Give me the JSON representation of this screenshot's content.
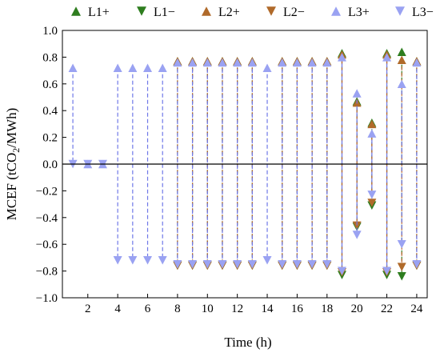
{
  "chart_data": {
    "type": "scatter",
    "title": "",
    "xlabel": "Time (h)",
    "ylabel_prefix": "MCEF (tCO",
    "ylabel_sub": "2",
    "ylabel_suffix": "/MWh)",
    "xlim": [
      0.3,
      24.7
    ],
    "ylim": [
      -1.0,
      1.0
    ],
    "x_ticks": [
      2,
      4,
      6,
      8,
      10,
      12,
      14,
      16,
      18,
      20,
      22,
      24
    ],
    "x_tick_labels": [
      "2",
      "4",
      "6",
      "8",
      "10",
      "12",
      "14",
      "16",
      "18",
      "20",
      "22",
      "24"
    ],
    "y_ticks": [
      1.0,
      0.8,
      0.6,
      0.4,
      0.2,
      0.0,
      -0.2,
      -0.4,
      -0.6,
      -0.8,
      -1.0
    ],
    "y_tick_labels": [
      "1.0",
      "0.8",
      "0.6",
      "0.4",
      "0.2",
      "0.0",
      "−0.2",
      "−0.4",
      "−0.6",
      "−0.8",
      "−1.0"
    ],
    "grid": false,
    "legend_position": "top",
    "zero_line": true,
    "x": [
      1,
      2,
      3,
      4,
      5,
      6,
      7,
      8,
      9,
      10,
      11,
      12,
      13,
      14,
      15,
      16,
      17,
      18,
      19,
      20,
      21,
      22,
      23,
      24
    ],
    "series": [
      {
        "name": "L1+",
        "marker": "triangle-up",
        "color": "#2e7d1f",
        "line_color": "#2e7d1f",
        "values": [
          null,
          null,
          null,
          null,
          null,
          null,
          null,
          0.77,
          0.77,
          0.77,
          0.77,
          0.77,
          0.77,
          null,
          0.77,
          0.77,
          0.77,
          0.77,
          0.83,
          0.47,
          0.31,
          0.83,
          0.84,
          0.77
        ]
      },
      {
        "name": "L1−",
        "marker": "triangle-down",
        "color": "#2e7d1f",
        "line_color": "#2e7d1f",
        "values": [
          null,
          null,
          null,
          null,
          null,
          null,
          null,
          -0.76,
          -0.76,
          -0.76,
          -0.76,
          -0.76,
          -0.76,
          null,
          -0.76,
          -0.76,
          -0.76,
          -0.76,
          -0.83,
          -0.47,
          -0.31,
          -0.83,
          -0.84,
          -0.76
        ]
      },
      {
        "name": "L2+",
        "marker": "triangle-up",
        "color": "#b06a2a",
        "line_color": "#b8612a",
        "values": [
          null,
          null,
          null,
          null,
          null,
          null,
          null,
          0.77,
          0.77,
          0.77,
          0.77,
          0.77,
          0.77,
          null,
          0.77,
          0.77,
          0.77,
          0.77,
          0.82,
          0.46,
          0.3,
          0.82,
          0.78,
          0.77
        ]
      },
      {
        "name": "L2−",
        "marker": "triangle-down",
        "color": "#b06a2a",
        "line_color": "#b8612a",
        "values": [
          null,
          null,
          null,
          null,
          null,
          null,
          null,
          -0.76,
          -0.76,
          -0.76,
          -0.76,
          -0.76,
          -0.76,
          null,
          -0.76,
          -0.76,
          -0.76,
          -0.76,
          -0.81,
          -0.46,
          -0.29,
          -0.81,
          -0.77,
          -0.76
        ]
      },
      {
        "name": "L3+",
        "marker": "triangle-up",
        "color": "#9aa2f2",
        "line_color": "#6f78e8",
        "values": [
          0.72,
          0.0,
          0.0,
          0.72,
          0.72,
          0.72,
          0.72,
          0.76,
          0.76,
          0.76,
          0.76,
          0.76,
          0.76,
          0.72,
          0.76,
          0.76,
          0.76,
          0.76,
          0.8,
          0.53,
          0.23,
          0.8,
          0.6,
          0.76
        ]
      },
      {
        "name": "L3−",
        "marker": "triangle-down",
        "color": "#9aa2f2",
        "line_color": "#6f78e8",
        "values": [
          0.0,
          0.0,
          0.0,
          -0.72,
          -0.72,
          -0.72,
          -0.72,
          -0.75,
          -0.75,
          -0.75,
          -0.75,
          -0.75,
          -0.75,
          -0.72,
          -0.75,
          -0.75,
          -0.75,
          -0.75,
          -0.8,
          -0.53,
          -0.23,
          -0.8,
          -0.6,
          -0.75
        ]
      }
    ]
  }
}
